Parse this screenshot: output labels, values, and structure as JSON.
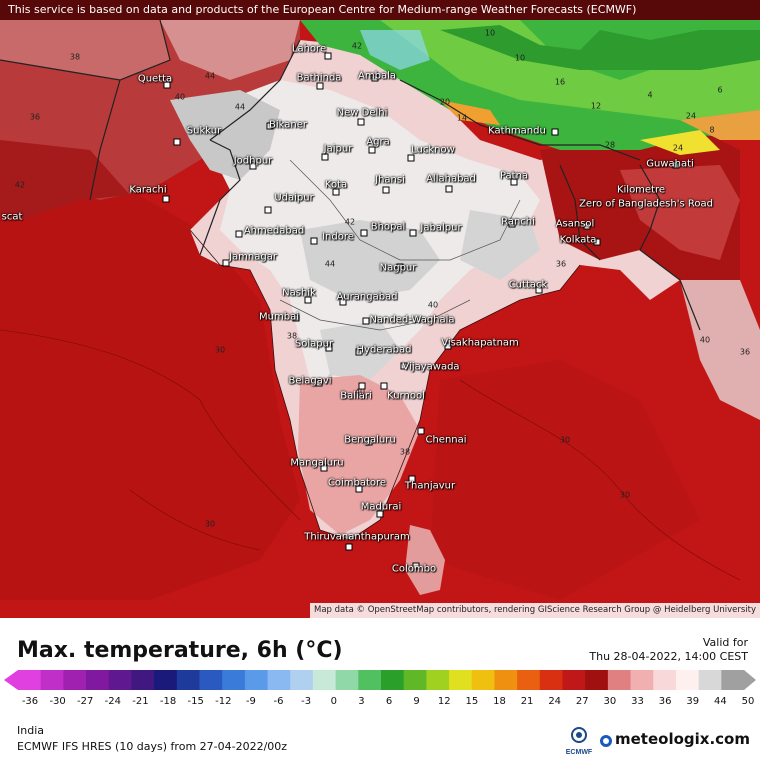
{
  "header": {
    "notice": "This service is based on data and products of the European Centre for Medium-range Weather Forecasts (ECMWF)"
  },
  "map": {
    "attribution": "Map data © OpenStreetMap contributors, rendering GIScience Research Group @ Heidelberg University",
    "colors": {
      "sea": "#c01414",
      "deep_red": "#9e0f0f",
      "land_pink": "#f2c3c3",
      "land_white": "#f4efef",
      "land_grey": "#c9c9c9",
      "mountains_green": "#3cb43c"
    },
    "cities": [
      {
        "name": "Lahore"
      },
      {
        "name": "Quetta"
      },
      {
        "name": "Bathinda"
      },
      {
        "name": "Ambala"
      },
      {
        "name": "Sukkur"
      },
      {
        "name": "Bikaner"
      },
      {
        "name": "New Delhi"
      },
      {
        "name": "Kathmandu"
      },
      {
        "name": "Jodhpur"
      },
      {
        "name": "Jaipur"
      },
      {
        "name": "Agra"
      },
      {
        "name": "Lucknow"
      },
      {
        "name": "Guwahati"
      },
      {
        "name": "Karachi"
      },
      {
        "name": "Kota"
      },
      {
        "name": "Jhansi"
      },
      {
        "name": "Allahabad"
      },
      {
        "name": "Patna"
      },
      {
        "name": "Udaipur"
      },
      {
        "name": "Ahmedabad"
      },
      {
        "name": "Indore"
      },
      {
        "name": "Bhopal"
      },
      {
        "name": "Jabalpur"
      },
      {
        "name": "Ranchi"
      },
      {
        "name": "Asansol"
      },
      {
        "name": "Kolkata"
      },
      {
        "name": "Jamnagar"
      },
      {
        "name": "Nagpur"
      },
      {
        "name": "Nashik"
      },
      {
        "name": "Aurangabad"
      },
      {
        "name": "Cuttack"
      },
      {
        "name": "Mumbai"
      },
      {
        "name": "Nanded-Waghala"
      },
      {
        "name": "Visakhapatnam"
      },
      {
        "name": "Solapur"
      },
      {
        "name": "Hyderabad"
      },
      {
        "name": "Vijayawada"
      },
      {
        "name": "Belagavi"
      },
      {
        "name": "Ballari"
      },
      {
        "name": "Kurnool"
      },
      {
        "name": "Bengaluru"
      },
      {
        "name": "Chennai"
      },
      {
        "name": "Mangaluru"
      },
      {
        "name": "Coimbatore"
      },
      {
        "name": "Thanjavur"
      },
      {
        "name": "Madurai"
      },
      {
        "name": "Thiruvananthapuram"
      },
      {
        "name": "Colombo"
      },
      {
        "name": "Zero of Bangladesh's Road"
      },
      {
        "name": "Kilometre"
      },
      {
        "name": "scat"
      }
    ],
    "isolines": [
      "38",
      "40",
      "42",
      "44",
      "36",
      "34",
      "30",
      "12",
      "10",
      "20",
      "16",
      "14",
      "8",
      "6",
      "4",
      "24",
      "28"
    ]
  },
  "legend": {
    "title": "Max. temperature, 6h (°C)",
    "valid_label": "Valid for",
    "valid_time": "Thu 28-04-2022, 14:00 CEST",
    "ticks": [
      "-36",
      "-30",
      "-27",
      "-24",
      "-21",
      "-18",
      "-15",
      "-12",
      "-9",
      "-6",
      "-3",
      "0",
      "3",
      "6",
      "9",
      "12",
      "15",
      "18",
      "21",
      "24",
      "27",
      "30",
      "33",
      "36",
      "39",
      "44",
      "50"
    ],
    "colors": [
      "#e040e0",
      "#c030c8",
      "#a020b0",
      "#8018a0",
      "#601890",
      "#401880",
      "#1a1a7a",
      "#1e3a9a",
      "#2a5ac0",
      "#3a7ad8",
      "#5a9ae8",
      "#8ab8f0",
      "#b0d0f0",
      "#c8e8d8",
      "#90d8a8",
      "#50c060",
      "#2aa02a",
      "#60b828",
      "#a0d020",
      "#e0e020",
      "#f0c010",
      "#f09010",
      "#e86010",
      "#d83010",
      "#c01818",
      "#a01010",
      "#e08080",
      "#f0b0b0",
      "#f8d8d8",
      "#fff0f0",
      "#d8d8d8",
      "#a0a0a0"
    ],
    "region": "India",
    "model": "ECMWF IFS HRES (10 days) from 27-04-2022/00z",
    "ecmwf_label": "ECMWF",
    "brand": "meteologix.com"
  }
}
